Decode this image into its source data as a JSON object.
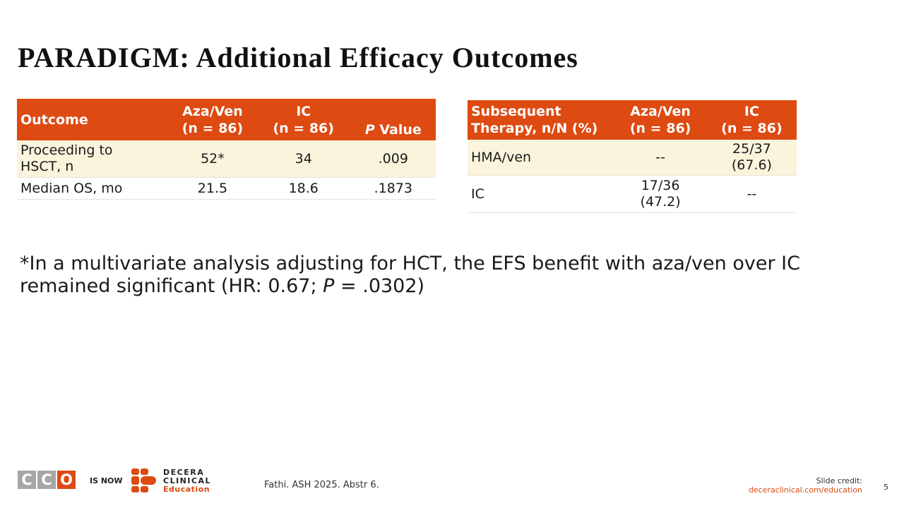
{
  "slide": {
    "title": "PARADIGM: Additional Efficacy Outcomes",
    "page_number": "5"
  },
  "table1": {
    "headers": [
      "Outcome",
      "Aza/Ven\n(n = 86)",
      "IC\n(n = 86)",
      "Value"
    ],
    "p_label": "P",
    "rows": [
      [
        "Proceeding to\nHSCT, n",
        "52*",
        "34",
        ".009"
      ],
      [
        "Median OS, mo",
        "21.5",
        "18.6",
        ".1873"
      ]
    ]
  },
  "table2": {
    "headers": [
      "Subsequent\nTherapy, n/N (%)",
      "Aza/Ven\n(n = 86)",
      "IC\n(n = 86)"
    ],
    "rows": [
      [
        "HMA/ven",
        "--",
        "25/37\n(67.6)"
      ],
      [
        "IC",
        "17/36\n(47.2)",
        "--"
      ]
    ]
  },
  "footnote": {
    "before": "*In a multivariate analysis adjusting for HCT, the EFS benefit with aza/ven over IC remained significant (HR: 0.67; ",
    "p": "P",
    "after": " = .0302)"
  },
  "footer": {
    "cco_letters": [
      "C",
      "C",
      "O"
    ],
    "is_now": "IS NOW",
    "decera_line1": "DECERA",
    "decera_line2": "CLINICAL",
    "decera_line3": "Education",
    "citation": "Fathi. ASH 2025. Abstr 6.",
    "credit_label": "Slide credit:",
    "credit_url": "deceraclinical.com/education"
  },
  "colors": {
    "accent": "#dd4a12",
    "row_tint": "#fbf4dc",
    "logo_gray": "#a6a6a6"
  }
}
